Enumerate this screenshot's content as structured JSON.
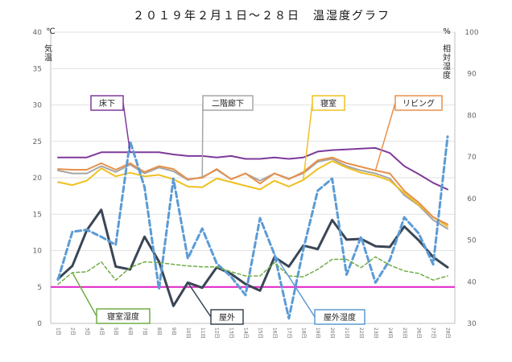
{
  "chart_data": {
    "type": "line",
    "title": "２０１９年２月１日～２８日　温湿度グラフ",
    "left_axis": {
      "unit": "℃",
      "label": "気温",
      "ylim": [
        0,
        40
      ],
      "ticks": [
        "0",
        "5",
        "10",
        "15",
        "20",
        "25",
        "30",
        "35",
        "40"
      ]
    },
    "right_axis": {
      "unit": "%",
      "label": "相対湿度",
      "ylim": [
        30,
        100
      ],
      "ticks": [
        "30",
        "40",
        "50",
        "60",
        "70",
        "80",
        "90",
        "100"
      ]
    },
    "categories": [
      "1日",
      "2日",
      "3日",
      "4日",
      "5日",
      "6日",
      "7日",
      "8日",
      "9日",
      "10日",
      "11日",
      "12日",
      "13日",
      "14日",
      "15日",
      "16日",
      "17日",
      "18日",
      "19日",
      "20日",
      "21日",
      "22日",
      "23日",
      "24日",
      "25日",
      "26日",
      "27日",
      "28日"
    ],
    "grid": true,
    "legend": "callouts",
    "reference_line": {
      "value": 5,
      "axis": "left",
      "color": "#e020c8"
    },
    "series": [
      {
        "name": "床下",
        "axis": "left",
        "color": "#7e3a9a",
        "dash": "solid",
        "values": [
          22.8,
          22.8,
          22.8,
          23.5,
          23.5,
          23.5,
          23.5,
          23.5,
          23.2,
          23.0,
          23.0,
          22.8,
          23.0,
          22.6,
          22.6,
          22.8,
          22.6,
          22.8,
          23.6,
          23.8,
          23.9,
          24.0,
          24.1,
          23.4,
          21.6,
          20.5,
          19.3,
          18.4
        ]
      },
      {
        "name": "二階廊下",
        "axis": "left",
        "color": "#a6a6a6",
        "dash": "solid",
        "values": [
          21.0,
          20.6,
          20.6,
          21.6,
          20.8,
          21.8,
          20.6,
          21.4,
          20.9,
          19.7,
          20.1,
          21.1,
          19.8,
          20.6,
          19.6,
          20.6,
          19.9,
          20.6,
          22.2,
          22.6,
          21.6,
          21.0,
          20.6,
          19.9,
          17.6,
          16.2,
          14.2,
          13.0
        ]
      },
      {
        "name": "寝室",
        "axis": "left",
        "color": "#f0c020",
        "dash": "solid",
        "values": [
          19.4,
          19.0,
          19.6,
          21.3,
          20.2,
          20.7,
          20.2,
          20.4,
          19.8,
          18.8,
          18.7,
          19.9,
          19.4,
          18.9,
          18.4,
          19.6,
          18.8,
          19.7,
          21.2,
          22.3,
          21.4,
          20.7,
          20.3,
          19.6,
          17.9,
          16.3,
          14.6,
          13.3
        ]
      },
      {
        "name": "リビング",
        "axis": "left",
        "color": "#e8904a",
        "dash": "solid",
        "values": [
          21.2,
          21.1,
          21.1,
          22.0,
          21.1,
          22.0,
          20.8,
          21.6,
          21.2,
          19.8,
          20.0,
          21.2,
          19.8,
          20.6,
          19.2,
          20.6,
          19.8,
          20.8,
          22.4,
          22.8,
          22.0,
          21.5,
          21.0,
          20.6,
          18.2,
          16.6,
          14.6,
          13.6
        ]
      },
      {
        "name": "屋外",
        "axis": "left",
        "color": "#3a4654",
        "dash": "solid",
        "values": [
          6.1,
          7.9,
          12.8,
          15.6,
          7.8,
          7.4,
          11.9,
          8.5,
          2.4,
          5.6,
          4.9,
          7.7,
          6.8,
          5.4,
          4.5,
          9.1,
          7.8,
          10.7,
          10.2,
          14.2,
          11.5,
          11.6,
          10.6,
          10.5,
          13.3,
          11.4,
          9.1,
          7.7
        ]
      },
      {
        "name": "屋外湿度",
        "axis": "right",
        "color": "#5b9bd5",
        "dash": "dashed",
        "values": [
          40.5,
          52,
          52.5,
          50.8,
          48.9,
          73.8,
          62.8,
          38.2,
          64.8,
          45.6,
          52.8,
          44.4,
          41.2,
          36.8,
          55.3,
          46.6,
          31.2,
          47.8,
          61.9,
          64.8,
          41.7,
          50.8,
          39.8,
          45.3,
          55.5,
          51.6,
          44.2,
          74.9
        ]
      },
      {
        "name": "寝室湿度",
        "axis": "right",
        "color": "#70ad47",
        "dash": "dashed",
        "values": [
          39.4,
          42.2,
          42.4,
          44.8,
          40.4,
          43.4,
          44.8,
          44.6,
          44.2,
          43.8,
          43.6,
          43.6,
          42.4,
          41.4,
          41.4,
          44.6,
          41.4,
          41.2,
          43.0,
          45.4,
          45.4,
          43.4,
          46.0,
          44.0,
          42.6,
          42.0,
          40.4,
          41.4
        ]
      }
    ],
    "callouts": [
      {
        "text": "床下",
        "border": "#7e3a9a",
        "target_series": 0,
        "target_index": 5
      },
      {
        "text": "二階廊下",
        "border": "#a6a6a6",
        "target_series": 1,
        "target_index": 10
      },
      {
        "text": "寝室",
        "border": "#f0c020",
        "target_series": 2,
        "target_index": 17
      },
      {
        "text": "リビング",
        "border": "#e8904a",
        "target_series": 3,
        "target_index": 22
      },
      {
        "text": "寝室湿度",
        "border": "#70ad47",
        "target_series": 6,
        "target_index": 1
      },
      {
        "text": "屋外",
        "border": "#3a4654",
        "target_series": 4,
        "target_index": 9
      },
      {
        "text": "屋外湿度",
        "border": "#5b9bd5",
        "target_series": 5,
        "target_index": 15
      }
    ]
  }
}
